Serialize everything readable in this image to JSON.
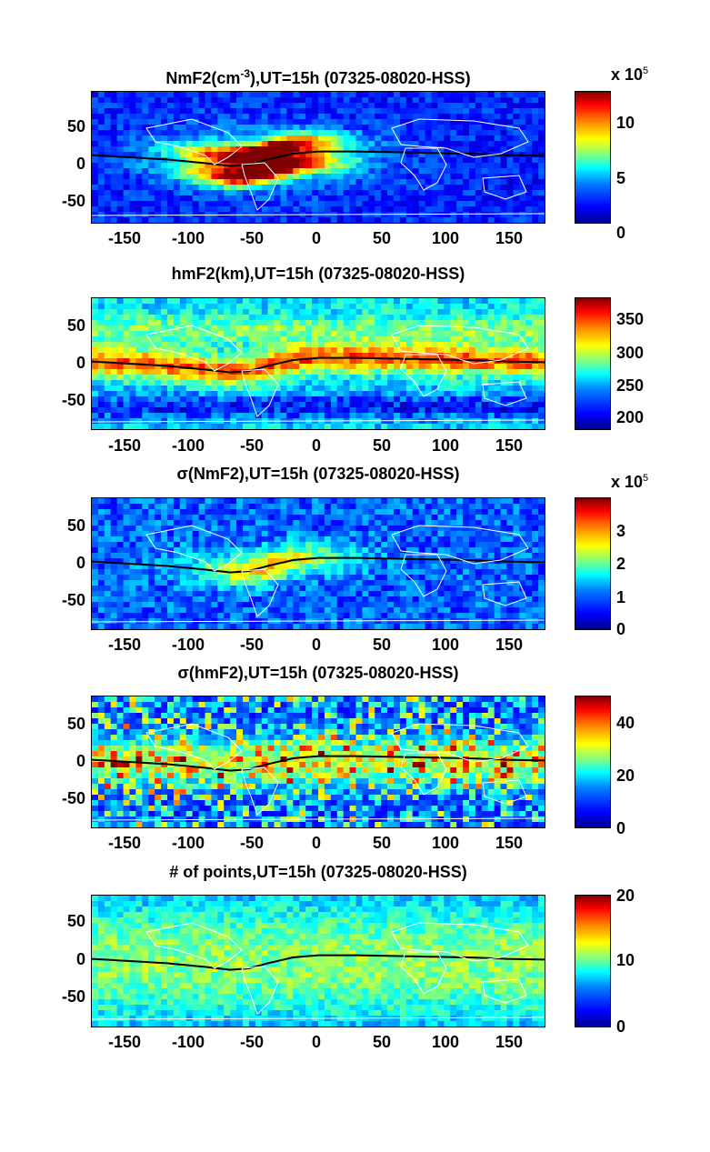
{
  "chart_data": [
    {
      "type": "heatmap",
      "title_prefix": "NmF2(cm",
      "title_sup": "-3",
      "title_suffix": "),UT=15h (07325-08020-HSS)",
      "xticks": [
        "-150",
        "-100",
        "-50",
        "0",
        "50",
        "100",
        "150"
      ],
      "xlim": [
        -180,
        180
      ],
      "yticks": [
        "50",
        "0",
        "-50"
      ],
      "ylim": [
        -90,
        90
      ],
      "colorbar": {
        "ticks": [
          "10",
          "5",
          "0"
        ],
        "multiplier_base": "x 10",
        "multiplier_exp": "5",
        "range": [
          0,
          12
        ]
      }
    },
    {
      "type": "heatmap",
      "title": "hmF2(km),UT=15h (07325-08020-HSS)",
      "xticks": [
        "-150",
        "-100",
        "-50",
        "0",
        "50",
        "100",
        "150"
      ],
      "xlim": [
        -180,
        180
      ],
      "yticks": [
        "50",
        "0",
        "-50"
      ],
      "ylim": [
        -90,
        90
      ],
      "colorbar": {
        "ticks": [
          "350",
          "300",
          "250",
          "200"
        ],
        "range": [
          180,
          380
        ]
      }
    },
    {
      "type": "heatmap",
      "title": "σ(NmF2),UT=15h (07325-08020-HSS)",
      "xticks": [
        "-150",
        "-100",
        "-50",
        "0",
        "50",
        "100",
        "150"
      ],
      "xlim": [
        -180,
        180
      ],
      "yticks": [
        "50",
        "0",
        "-50"
      ],
      "ylim": [
        -90,
        90
      ],
      "colorbar": {
        "ticks": [
          "3",
          "2",
          "1",
          "0"
        ],
        "multiplier_base": "x 10",
        "multiplier_exp": "5",
        "range": [
          0,
          4
        ]
      }
    },
    {
      "type": "heatmap",
      "title": "σ(hmF2),UT=15h (07325-08020-HSS)",
      "xticks": [
        "-150",
        "-100",
        "-50",
        "0",
        "50",
        "100",
        "150"
      ],
      "xlim": [
        -180,
        180
      ],
      "yticks": [
        "50",
        "0",
        "-50"
      ],
      "ylim": [
        -90,
        90
      ],
      "colorbar": {
        "ticks": [
          "40",
          "20",
          "0"
        ],
        "range": [
          0,
          50
        ]
      }
    },
    {
      "type": "heatmap",
      "title": "# of points,UT=15h (07325-08020-HSS)",
      "xticks": [
        "-150",
        "-100",
        "-50",
        "0",
        "50",
        "100",
        "150"
      ],
      "xlim": [
        -180,
        180
      ],
      "yticks": [
        "50",
        "0",
        "-50"
      ],
      "ylim": [
        -90,
        90
      ],
      "colorbar": {
        "ticks": [
          "20",
          "10",
          "0"
        ],
        "range": [
          0,
          20
        ]
      }
    }
  ],
  "dip_equator_lon_lat": [
    [
      -180,
      3
    ],
    [
      -150,
      0
    ],
    [
      -120,
      -3
    ],
    [
      -90,
      -8
    ],
    [
      -70,
      -12
    ],
    [
      -55,
      -10
    ],
    [
      -40,
      -3
    ],
    [
      -20,
      5
    ],
    [
      0,
      8
    ],
    [
      30,
      8
    ],
    [
      60,
      7
    ],
    [
      90,
      6
    ],
    [
      120,
      5
    ],
    [
      150,
      3
    ],
    [
      180,
      2
    ]
  ]
}
